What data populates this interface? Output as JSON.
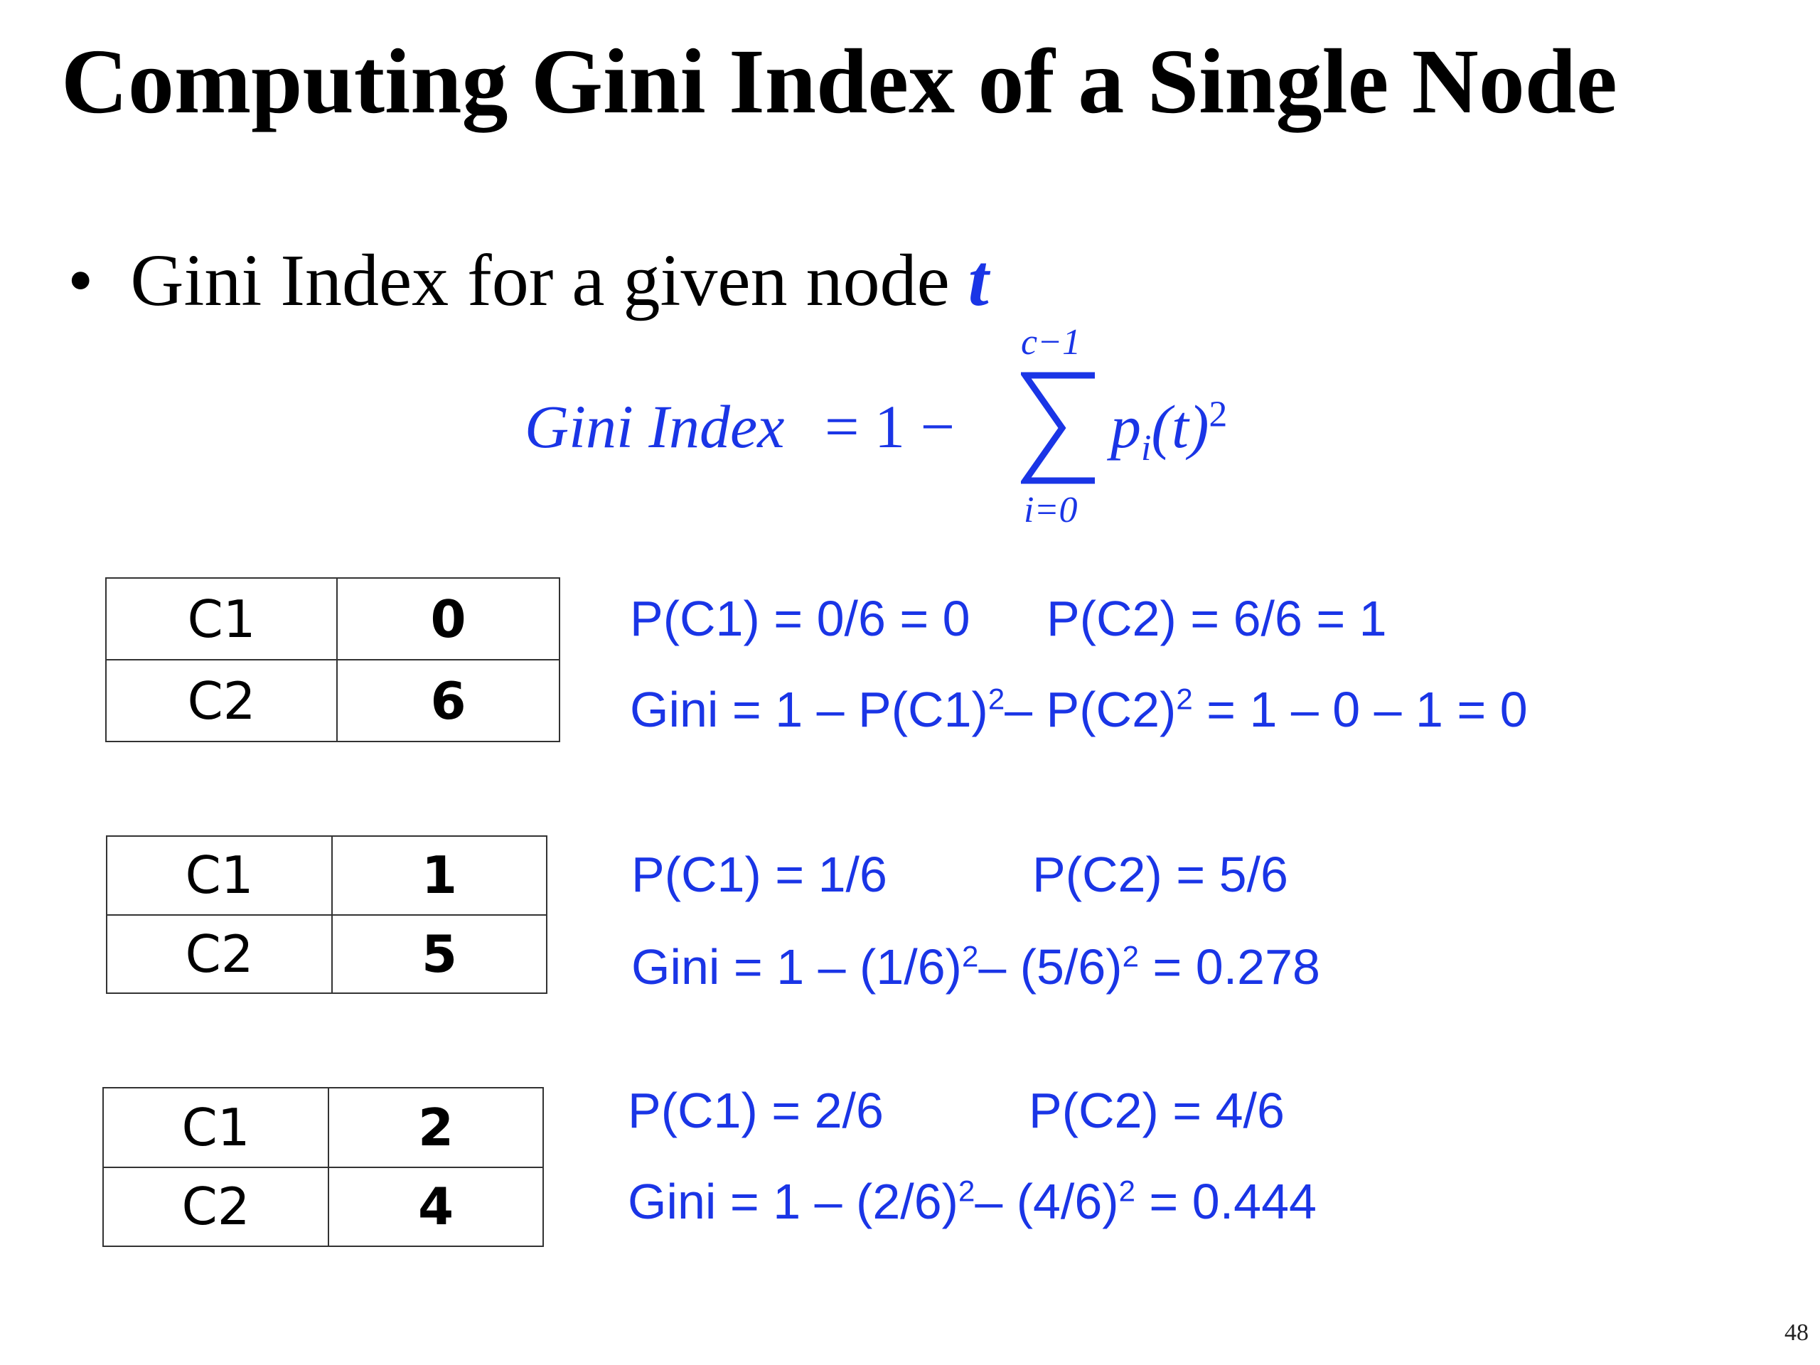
{
  "title": "Computing Gini Index of a Single Node",
  "bullet": {
    "text": "Gini Index for a given node",
    "variable": "t"
  },
  "formula": {
    "lhs": "Gini Index",
    "operator": "= 1 −",
    "upper": "c−1",
    "lower": "i=0",
    "term": "p",
    "term_sub": "i",
    "term_arg": "(t)",
    "term_power": "2"
  },
  "examples": [
    {
      "table": [
        [
          "C1",
          "0"
        ],
        [
          "C2",
          "6"
        ]
      ],
      "p1": "P(C1) = 0/6 = 0",
      "p2": "P(C2) = 6/6 = 1",
      "gini": [
        {
          "text": "Gini = 1 – P(C1)",
          "sup": "2"
        },
        {
          "text": "– P(C2)",
          "sup": "2"
        },
        {
          "text": " = 1 – 0 – 1 = 0"
        }
      ]
    },
    {
      "table": [
        [
          "C1",
          "1"
        ],
        [
          "C2",
          "5"
        ]
      ],
      "p1": "P(C1) = 1/6",
      "p2": "P(C2) = 5/6",
      "gini": [
        {
          "text": "Gini = 1 – (1/6)",
          "sup": "2"
        },
        {
          "text": "– (5/6)",
          "sup": "2"
        },
        {
          "text": " = 0.278"
        }
      ]
    },
    {
      "table": [
        [
          "C1",
          "2"
        ],
        [
          "C2",
          "4"
        ]
      ],
      "p1": "P(C1) = 2/6",
      "p2": "P(C2) = 4/6",
      "gini": [
        {
          "text": "Gini = 1 – (2/6)",
          "sup": "2"
        },
        {
          "text": "– (4/6)",
          "sup": "2"
        },
        {
          "text": " = 0.444"
        }
      ]
    }
  ],
  "page_number": "48"
}
